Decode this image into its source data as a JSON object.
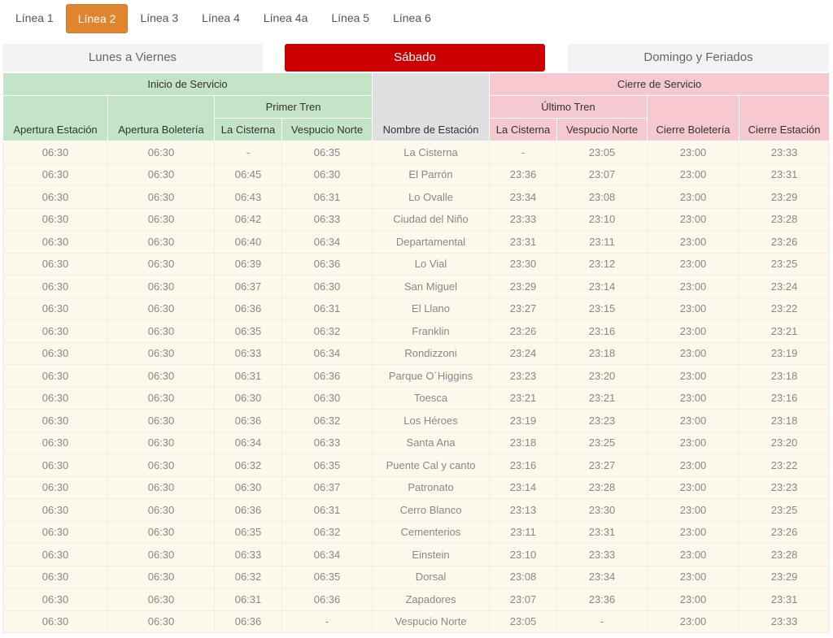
{
  "line_tabs": [
    "Línea 1",
    "Línea 2",
    "Línea 3",
    "Línea 4",
    "Línea 4a",
    "Línea 5",
    "Línea 6"
  ],
  "active_line_index": 1,
  "day_tabs": [
    "Lunes a Viernes",
    "Sábado",
    "Domingo y Feriados"
  ],
  "active_day_index": 1,
  "colors": {
    "line_tab_active": "#e0852e",
    "day_tab_active": "#cc0000",
    "start_header": "#c4e4c7",
    "end_header": "#f6c8d0",
    "row_bg": "#fdf8ec"
  },
  "headers": {
    "inicio": "Inicio de Servicio",
    "cierre": "Cierre de Servicio",
    "primer_tren": "Primer Tren",
    "ultimo_tren": "Último Tren",
    "apertura_estacion": "Apertura Estación",
    "apertura_boleteria": "Apertura Boletería",
    "la_cisterna_1": "La Cisterna",
    "vespucio_norte_1": "Vespucio Norte",
    "nombre_estacion": "Nombre de Estación",
    "la_cisterna_2": "La Cisterna",
    "vespucio_norte_2": "Vespucio Norte",
    "cierre_boleteria": "Cierre Boletería",
    "cierre_estacion": "Cierre Estación"
  },
  "rows": [
    [
      "06:30",
      "06:30",
      "-",
      "06:35",
      "La Cisterna",
      "-",
      "23:05",
      "23:00",
      "23:33"
    ],
    [
      "06:30",
      "06:30",
      "06:45",
      "06:30",
      "El Parrón",
      "23:36",
      "23:07",
      "23:00",
      "23:31"
    ],
    [
      "06:30",
      "06:30",
      "06:43",
      "06:31",
      "Lo Ovalle",
      "23:34",
      "23:08",
      "23:00",
      "23:29"
    ],
    [
      "06:30",
      "06:30",
      "06:42",
      "06:33",
      "Ciudad del Niño",
      "23:33",
      "23:10",
      "23:00",
      "23:28"
    ],
    [
      "06:30",
      "06:30",
      "06:40",
      "06:34",
      "Departamental",
      "23:31",
      "23:11",
      "23:00",
      "23:26"
    ],
    [
      "06:30",
      "06:30",
      "06:39",
      "06:36",
      "Lo Vial",
      "23:30",
      "23:12",
      "23:00",
      "23:25"
    ],
    [
      "06:30",
      "06:30",
      "06:37",
      "06:30",
      "San Miguel",
      "23:29",
      "23:14",
      "23:00",
      "23:24"
    ],
    [
      "06:30",
      "06:30",
      "06:36",
      "06:31",
      "El Llano",
      "23:27",
      "23:15",
      "23:00",
      "23:22"
    ],
    [
      "06:30",
      "06:30",
      "06:35",
      "06:32",
      "Franklin",
      "23:26",
      "23:16",
      "23:00",
      "23:21"
    ],
    [
      "06:30",
      "06:30",
      "06:33",
      "06:34",
      "Rondizzoni",
      "23:24",
      "23:18",
      "23:00",
      "23:19"
    ],
    [
      "06:30",
      "06:30",
      "06:31",
      "06:36",
      "Parque O´Higgins",
      "23:23",
      "23:20",
      "23:00",
      "23:18"
    ],
    [
      "06:30",
      "06:30",
      "06:30",
      "06:30",
      "Toesca",
      "23:21",
      "23:21",
      "23:00",
      "23:16"
    ],
    [
      "06:30",
      "06:30",
      "06:36",
      "06:32",
      "Los Héroes",
      "23:19",
      "23:23",
      "23:00",
      "23:18"
    ],
    [
      "06:30",
      "06:30",
      "06:34",
      "06:33",
      "Santa Ana",
      "23:18",
      "23:25",
      "23:00",
      "23:20"
    ],
    [
      "06:30",
      "06:30",
      "06:32",
      "06:35",
      "Puente Cal y canto",
      "23:16",
      "23:27",
      "23:00",
      "23:22"
    ],
    [
      "06:30",
      "06:30",
      "06:30",
      "06:37",
      "Patronato",
      "23:14",
      "23:28",
      "23:00",
      "23:23"
    ],
    [
      "06:30",
      "06:30",
      "06:36",
      "06:31",
      "Cerro Blanco",
      "23:13",
      "23:30",
      "23:00",
      "23:25"
    ],
    [
      "06:30",
      "06:30",
      "06:35",
      "06:32",
      "Cementerios",
      "23:11",
      "23:31",
      "23:00",
      "23:26"
    ],
    [
      "06:30",
      "06:30",
      "06:33",
      "06:34",
      "Einstein",
      "23:10",
      "23:33",
      "23:00",
      "23:28"
    ],
    [
      "06:30",
      "06:30",
      "06:32",
      "06:35",
      "Dorsal",
      "23:08",
      "23:34",
      "23:00",
      "23:29"
    ],
    [
      "06:30",
      "06:30",
      "06:31",
      "06:36",
      "Zapadores",
      "23:07",
      "23:36",
      "23:00",
      "23:31"
    ],
    [
      "06:30",
      "06:30",
      "06:36",
      "-",
      "Vespucio Norte",
      "23:05",
      "-",
      "23:00",
      "23:33"
    ]
  ]
}
